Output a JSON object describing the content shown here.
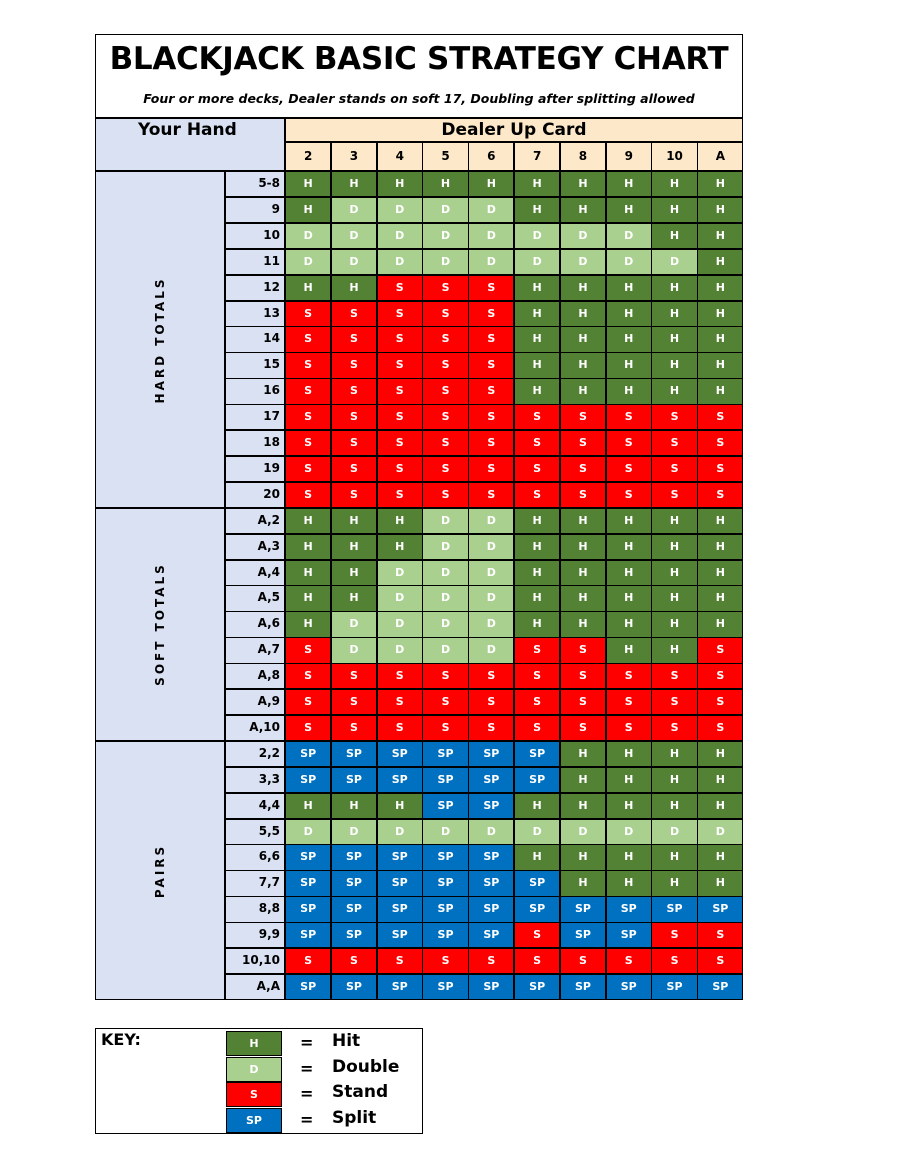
{
  "title": "BLACKJACK BASIC STRATEGY CHART",
  "subtitle": "Four or more decks, Dealer stands on soft 17, Doubling after splitting allowed",
  "your_hand_label": "Your Hand",
  "dealer_label": "Dealer Up Card",
  "dealer_cards": [
    "2",
    "3",
    "4",
    "5",
    "6",
    "7",
    "8",
    "9",
    "10",
    "A"
  ],
  "sections": [
    {
      "label": "HARD TOTALS",
      "rows": [
        {
          "hand": "5-8",
          "actions": [
            "H",
            "H",
            "H",
            "H",
            "H",
            "H",
            "H",
            "H",
            "H",
            "H"
          ]
        },
        {
          "hand": "9",
          "actions": [
            "H",
            "D",
            "D",
            "D",
            "D",
            "H",
            "H",
            "H",
            "H",
            "H"
          ]
        },
        {
          "hand": "10",
          "actions": [
            "D",
            "D",
            "D",
            "D",
            "D",
            "D",
            "D",
            "D",
            "H",
            "H"
          ]
        },
        {
          "hand": "11",
          "actions": [
            "D",
            "D",
            "D",
            "D",
            "D",
            "D",
            "D",
            "D",
            "D",
            "H"
          ]
        },
        {
          "hand": "12",
          "actions": [
            "H",
            "H",
            "S",
            "S",
            "S",
            "H",
            "H",
            "H",
            "H",
            "H"
          ]
        },
        {
          "hand": "13",
          "actions": [
            "S",
            "S",
            "S",
            "S",
            "S",
            "H",
            "H",
            "H",
            "H",
            "H"
          ]
        },
        {
          "hand": "14",
          "actions": [
            "S",
            "S",
            "S",
            "S",
            "S",
            "H",
            "H",
            "H",
            "H",
            "H"
          ]
        },
        {
          "hand": "15",
          "actions": [
            "S",
            "S",
            "S",
            "S",
            "S",
            "H",
            "H",
            "H",
            "H",
            "H"
          ]
        },
        {
          "hand": "16",
          "actions": [
            "S",
            "S",
            "S",
            "S",
            "S",
            "H",
            "H",
            "H",
            "H",
            "H"
          ]
        },
        {
          "hand": "17",
          "actions": [
            "S",
            "S",
            "S",
            "S",
            "S",
            "S",
            "S",
            "S",
            "S",
            "S"
          ]
        },
        {
          "hand": "18",
          "actions": [
            "S",
            "S",
            "S",
            "S",
            "S",
            "S",
            "S",
            "S",
            "S",
            "S"
          ]
        },
        {
          "hand": "19",
          "actions": [
            "S",
            "S",
            "S",
            "S",
            "S",
            "S",
            "S",
            "S",
            "S",
            "S"
          ]
        },
        {
          "hand": "20",
          "actions": [
            "S",
            "S",
            "S",
            "S",
            "S",
            "S",
            "S",
            "S",
            "S",
            "S"
          ]
        }
      ]
    },
    {
      "label": "SOFT TOTALS",
      "rows": [
        {
          "hand": "A,2",
          "actions": [
            "H",
            "H",
            "H",
            "D",
            "D",
            "H",
            "H",
            "H",
            "H",
            "H"
          ]
        },
        {
          "hand": "A,3",
          "actions": [
            "H",
            "H",
            "H",
            "D",
            "D",
            "H",
            "H",
            "H",
            "H",
            "H"
          ]
        },
        {
          "hand": "A,4",
          "actions": [
            "H",
            "H",
            "D",
            "D",
            "D",
            "H",
            "H",
            "H",
            "H",
            "H"
          ]
        },
        {
          "hand": "A,5",
          "actions": [
            "H",
            "H",
            "D",
            "D",
            "D",
            "H",
            "H",
            "H",
            "H",
            "H"
          ]
        },
        {
          "hand": "A,6",
          "actions": [
            "H",
            "D",
            "D",
            "D",
            "D",
            "H",
            "H",
            "H",
            "H",
            "H"
          ]
        },
        {
          "hand": "A,7",
          "actions": [
            "S",
            "D",
            "D",
            "D",
            "D",
            "S",
            "S",
            "H",
            "H",
            "S"
          ]
        },
        {
          "hand": "A,8",
          "actions": [
            "S",
            "S",
            "S",
            "S",
            "S",
            "S",
            "S",
            "S",
            "S",
            "S"
          ]
        },
        {
          "hand": "A,9",
          "actions": [
            "S",
            "S",
            "S",
            "S",
            "S",
            "S",
            "S",
            "S",
            "S",
            "S"
          ]
        },
        {
          "hand": "A,10",
          "actions": [
            "S",
            "S",
            "S",
            "S",
            "S",
            "S",
            "S",
            "S",
            "S",
            "S"
          ]
        }
      ]
    },
    {
      "label": "PAIRS",
      "rows": [
        {
          "hand": "2,2",
          "actions": [
            "SP",
            "SP",
            "SP",
            "SP",
            "SP",
            "SP",
            "H",
            "H",
            "H",
            "H"
          ]
        },
        {
          "hand": "3,3",
          "actions": [
            "SP",
            "SP",
            "SP",
            "SP",
            "SP",
            "SP",
            "H",
            "H",
            "H",
            "H"
          ]
        },
        {
          "hand": "4,4",
          "actions": [
            "H",
            "H",
            "H",
            "SP",
            "SP",
            "H",
            "H",
            "H",
            "H",
            "H"
          ]
        },
        {
          "hand": "5,5",
          "actions": [
            "D",
            "D",
            "D",
            "D",
            "D",
            "D",
            "D",
            "D",
            "D",
            "D"
          ]
        },
        {
          "hand": "6,6",
          "actions": [
            "SP",
            "SP",
            "SP",
            "SP",
            "SP",
            "H",
            "H",
            "H",
            "H",
            "H"
          ]
        },
        {
          "hand": "7,7",
          "actions": [
            "SP",
            "SP",
            "SP",
            "SP",
            "SP",
            "SP",
            "H",
            "H",
            "H",
            "H"
          ]
        },
        {
          "hand": "8,8",
          "actions": [
            "SP",
            "SP",
            "SP",
            "SP",
            "SP",
            "SP",
            "SP",
            "SP",
            "SP",
            "SP"
          ]
        },
        {
          "hand": "9,9",
          "actions": [
            "SP",
            "SP",
            "SP",
            "SP",
            "SP",
            "S",
            "SP",
            "SP",
            "S",
            "S"
          ]
        },
        {
          "hand": "10,10",
          "actions": [
            "S",
            "S",
            "S",
            "S",
            "S",
            "S",
            "S",
            "S",
            "S",
            "S"
          ]
        },
        {
          "hand": "A,A",
          "actions": [
            "SP",
            "SP",
            "SP",
            "SP",
            "SP",
            "SP",
            "SP",
            "SP",
            "SP",
            "SP"
          ]
        }
      ]
    }
  ],
  "key": {
    "title": "KEY:",
    "items": [
      {
        "code": "H",
        "label": "Hit",
        "color": "#548235"
      },
      {
        "code": "D",
        "label": "Double",
        "color": "#a9d08e"
      },
      {
        "code": "S",
        "label": "Stand",
        "color": "#ff0000"
      },
      {
        "code": "SP",
        "label": "Split",
        "color": "#0070c0"
      }
    ],
    "equals": "="
  }
}
